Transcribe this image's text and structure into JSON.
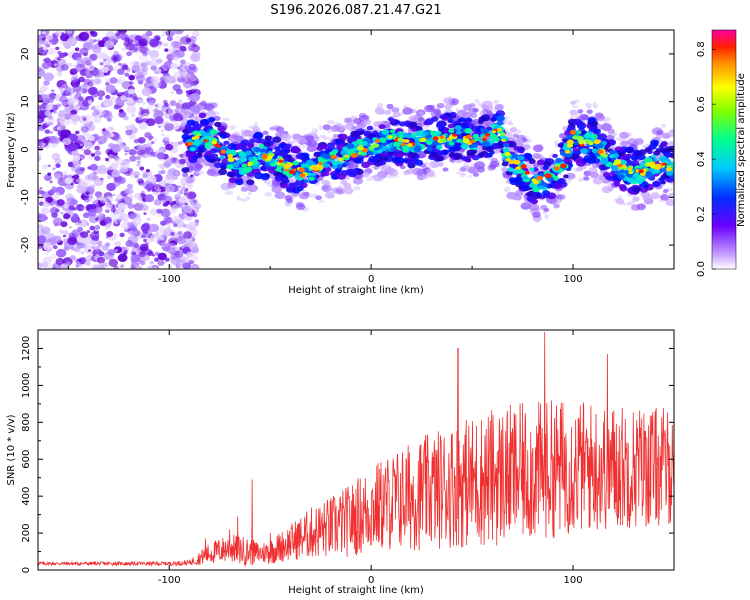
{
  "title": "S196.2026.087.21.47.G21",
  "chart_data": [
    {
      "type": "heatmap",
      "xlabel": "Height of straight line (km)",
      "ylabel": "Frequency (Hz)",
      "xlim": [
        -165,
        150
      ],
      "ylim": [
        -25,
        25
      ],
      "xticks": [
        -100,
        0,
        100
      ],
      "yticks": [
        -20,
        -10,
        0,
        10,
        20
      ],
      "noise_region_x": [
        -165,
        -90
      ],
      "signal_track": {
        "x": [
          -92,
          -85,
          -78,
          -70,
          -62,
          -55,
          -48,
          -40,
          -32,
          -25,
          -18,
          -10,
          0,
          10,
          20,
          30,
          40,
          50,
          60,
          64,
          68,
          75,
          82,
          88,
          95,
          100,
          105,
          110,
          118,
          125,
          132,
          140,
          145,
          150
        ],
        "freq": [
          0,
          3,
          2,
          -2,
          -3,
          -1,
          -2,
          -4,
          -5,
          -3,
          -2,
          -1,
          1,
          2,
          1,
          2,
          3,
          2,
          3,
          5,
          -2,
          -4,
          -7,
          -6,
          -3,
          3,
          1,
          2,
          -2,
          -4,
          -5,
          -3,
          -3,
          -4
        ]
      },
      "colorbar": {
        "label": "Normalized spectral amplitude",
        "ticks": [
          0.0,
          0.2,
          0.4,
          0.6,
          0.8
        ],
        "range": [
          0,
          0.87
        ]
      }
    },
    {
      "type": "line",
      "xlabel": "Height of straight line (km)",
      "ylabel": "SNR (10 * v/v)",
      "xlim": [
        -165,
        150
      ],
      "ylim": [
        0,
        1300
      ],
      "xticks": [
        -100,
        0,
        100
      ],
      "yticks": [
        0,
        200,
        400,
        600,
        800,
        1000,
        1200
      ],
      "color": "#f03030",
      "envelope": {
        "x": [
          -165,
          -100,
          -90,
          -80,
          -70,
          -62,
          -55,
          -50,
          -40,
          -30,
          -20,
          -10,
          0,
          10,
          20,
          30,
          40,
          50,
          60,
          70,
          80,
          90,
          100,
          110,
          120,
          130,
          140,
          150
        ],
        "mean": [
          35,
          35,
          40,
          90,
          120,
          100,
          90,
          100,
          150,
          200,
          230,
          270,
          330,
          370,
          400,
          430,
          460,
          480,
          500,
          520,
          530,
          550,
          560,
          560,
          560,
          560,
          560,
          560
        ],
        "amp": [
          10,
          10,
          15,
          60,
          80,
          80,
          60,
          70,
          100,
          140,
          170,
          200,
          240,
          270,
          300,
          320,
          340,
          360,
          380,
          380,
          380,
          380,
          370,
          360,
          350,
          340,
          330,
          320
        ]
      },
      "spikes": [
        {
          "x": -82,
          "y": 170
        },
        {
          "x": -70,
          "y": 220
        },
        {
          "x": -66,
          "y": 290
        },
        {
          "x": -59,
          "y": 490
        },
        {
          "x": -50,
          "y": 200
        },
        {
          "x": 43,
          "y": 1200
        },
        {
          "x": 86,
          "y": 1290
        },
        {
          "x": 117,
          "y": 1170
        }
      ]
    }
  ]
}
